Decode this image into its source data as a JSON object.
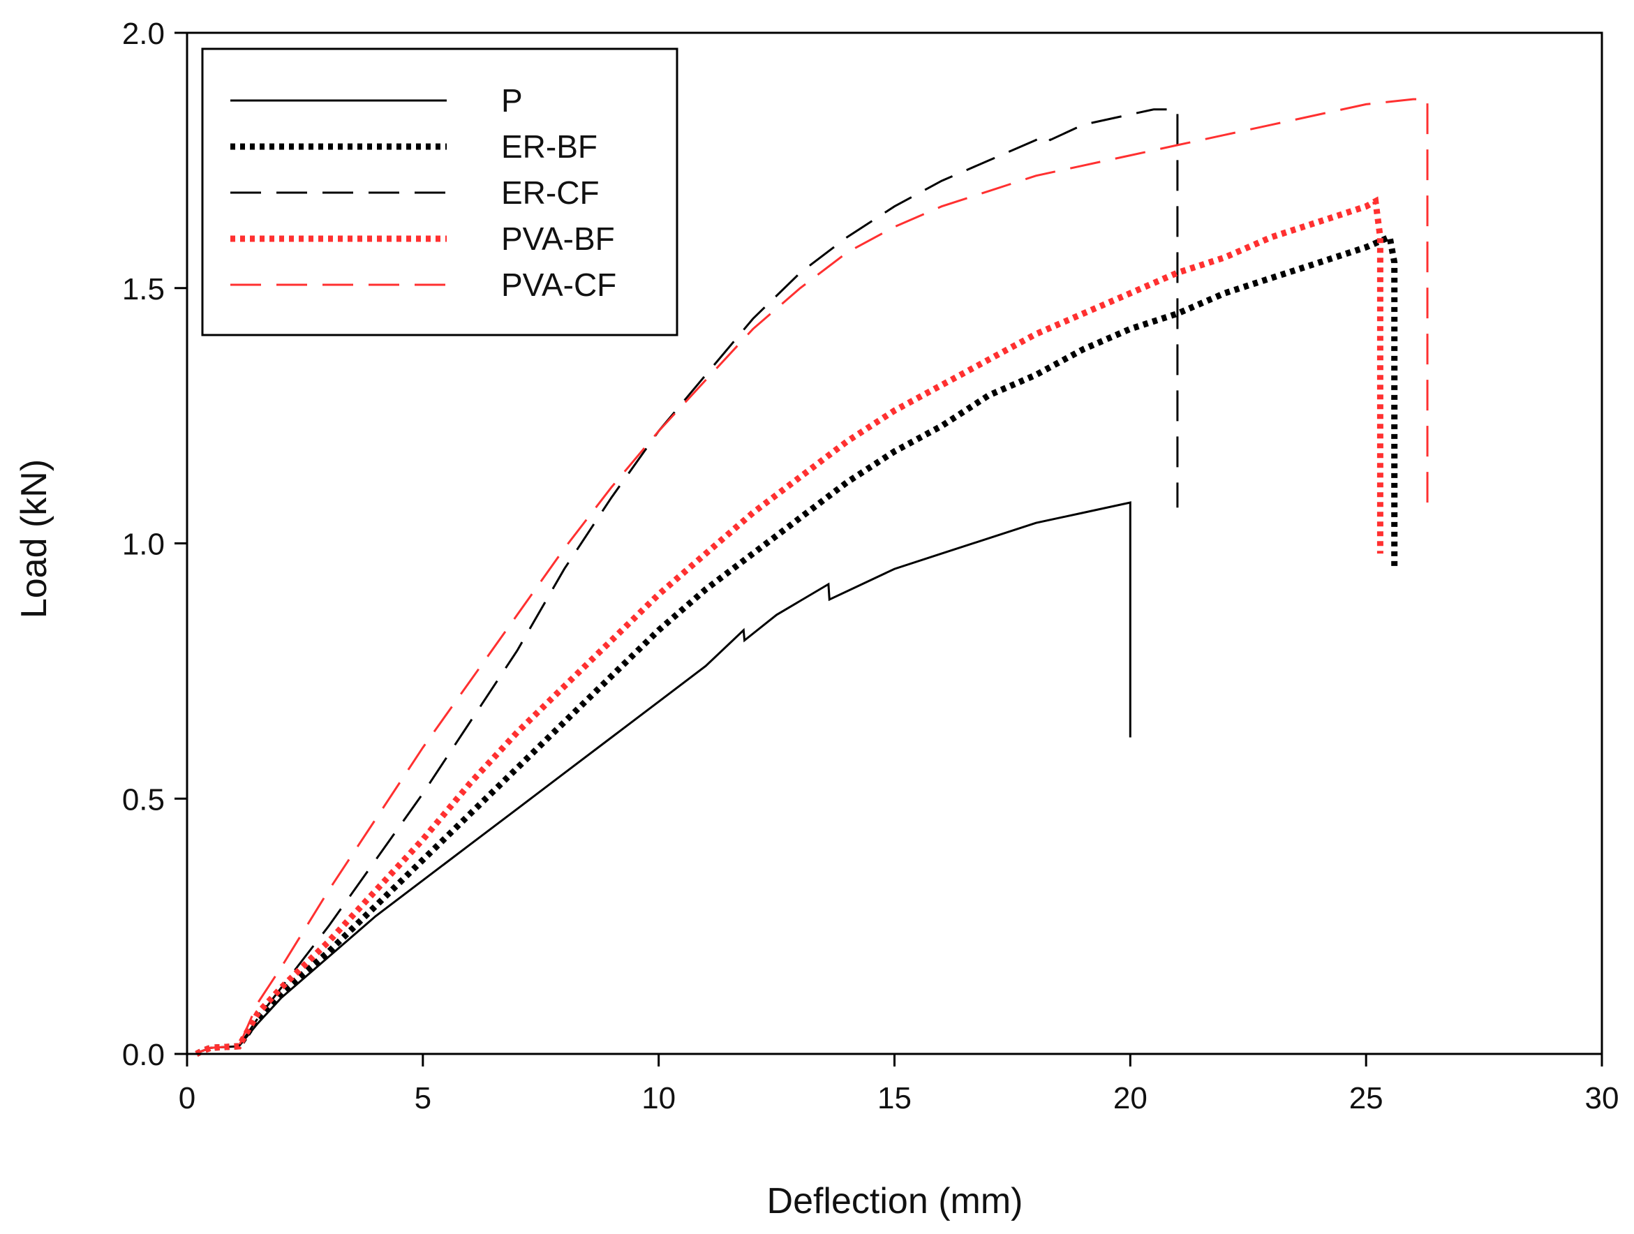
{
  "chart_data": {
    "type": "line",
    "title": "",
    "xlabel": "Deflection (mm)",
    "ylabel": "Load (kN)",
    "xlim": [
      0,
      30
    ],
    "ylim": [
      0,
      2.0
    ],
    "xticks": [
      "0",
      "5",
      "10",
      "15",
      "20",
      "25",
      "30"
    ],
    "yticks": [
      "0.0",
      "0.5",
      "1.0",
      "1.5",
      "2.0"
    ],
    "grid": false,
    "legend_position": "top-left",
    "series": [
      {
        "name": "P",
        "color": "#000000",
        "style": "solid",
        "points": [
          [
            0.2,
            0
          ],
          [
            0.3,
            0.005
          ],
          [
            0.5,
            0.012
          ],
          [
            1.1,
            0.015
          ],
          [
            1.5,
            0.06
          ],
          [
            2,
            0.11
          ],
          [
            3,
            0.19
          ],
          [
            4,
            0.27
          ],
          [
            5,
            0.34
          ],
          [
            6,
            0.41
          ],
          [
            7,
            0.48
          ],
          [
            8,
            0.55
          ],
          [
            9,
            0.62
          ],
          [
            10,
            0.69
          ],
          [
            11,
            0.76
          ],
          [
            11.8,
            0.83
          ],
          [
            11.82,
            0.81
          ],
          [
            12.5,
            0.86
          ],
          [
            13.6,
            0.92
          ],
          [
            13.62,
            0.89
          ],
          [
            15,
            0.95
          ],
          [
            16,
            0.98
          ],
          [
            17,
            1.01
          ],
          [
            18,
            1.04
          ],
          [
            19,
            1.06
          ],
          [
            20,
            1.08
          ],
          [
            20,
            0.62
          ]
        ]
      },
      {
        "name": "ER-BF",
        "color": "#000000",
        "style": "dotted",
        "points": [
          [
            0.2,
            0
          ],
          [
            0.3,
            0.005
          ],
          [
            0.5,
            0.012
          ],
          [
            1.1,
            0.015
          ],
          [
            1.5,
            0.07
          ],
          [
            2,
            0.12
          ],
          [
            3,
            0.2
          ],
          [
            4,
            0.29
          ],
          [
            5,
            0.38
          ],
          [
            6,
            0.47
          ],
          [
            7,
            0.56
          ],
          [
            8,
            0.65
          ],
          [
            9,
            0.74
          ],
          [
            10,
            0.83
          ],
          [
            11,
            0.91
          ],
          [
            12,
            0.98
          ],
          [
            13,
            1.05
          ],
          [
            14,
            1.12
          ],
          [
            15,
            1.18
          ],
          [
            16,
            1.23
          ],
          [
            17,
            1.29
          ],
          [
            18,
            1.33
          ],
          [
            19,
            1.38
          ],
          [
            20,
            1.42
          ],
          [
            21,
            1.45
          ],
          [
            22,
            1.49
          ],
          [
            23,
            1.52
          ],
          [
            24,
            1.55
          ],
          [
            25,
            1.58
          ],
          [
            25.5,
            1.6
          ],
          [
            25.6,
            1.55
          ],
          [
            25.6,
            0.95
          ]
        ]
      },
      {
        "name": "ER-CF",
        "color": "#000000",
        "style": "dashed",
        "points": [
          [
            0.2,
            0
          ],
          [
            0.3,
            0.005
          ],
          [
            0.5,
            0.012
          ],
          [
            1.1,
            0.015
          ],
          [
            1.5,
            0.07
          ],
          [
            2,
            0.13
          ],
          [
            3,
            0.25
          ],
          [
            4,
            0.38
          ],
          [
            5,
            0.51
          ],
          [
            6,
            0.65
          ],
          [
            7,
            0.79
          ],
          [
            8,
            0.95
          ],
          [
            9,
            1.09
          ],
          [
            10,
            1.22
          ],
          [
            11,
            1.33
          ],
          [
            12,
            1.44
          ],
          [
            13,
            1.53
          ],
          [
            14,
            1.6
          ],
          [
            15,
            1.66
          ],
          [
            16,
            1.71
          ],
          [
            17,
            1.75
          ],
          [
            18,
            1.79
          ],
          [
            18.2,
            1.8
          ],
          [
            18.3,
            1.79
          ],
          [
            19,
            1.82
          ],
          [
            20,
            1.84
          ],
          [
            20.5,
            1.85
          ],
          [
            21,
            1.85
          ],
          [
            21,
            1.07
          ]
        ]
      },
      {
        "name": "PVA-BF",
        "color": "#ff3030",
        "style": "dotted",
        "points": [
          [
            0.2,
            0
          ],
          [
            0.3,
            0.005
          ],
          [
            0.5,
            0.012
          ],
          [
            1.1,
            0.015
          ],
          [
            1.5,
            0.08
          ],
          [
            2,
            0.13
          ],
          [
            3,
            0.22
          ],
          [
            4,
            0.32
          ],
          [
            5,
            0.42
          ],
          [
            6,
            0.53
          ],
          [
            7,
            0.63
          ],
          [
            8,
            0.72
          ],
          [
            9,
            0.81
          ],
          [
            10,
            0.9
          ],
          [
            11,
            0.98
          ],
          [
            12,
            1.06
          ],
          [
            13,
            1.13
          ],
          [
            14,
            1.2
          ],
          [
            15,
            1.26
          ],
          [
            16,
            1.31
          ],
          [
            17,
            1.36
          ],
          [
            18,
            1.41
          ],
          [
            19,
            1.45
          ],
          [
            20,
            1.49
          ],
          [
            21,
            1.53
          ],
          [
            22,
            1.56
          ],
          [
            23,
            1.6
          ],
          [
            24,
            1.63
          ],
          [
            25,
            1.66
          ],
          [
            25.2,
            1.67
          ],
          [
            25.3,
            1.6
          ],
          [
            25.3,
            0.98
          ]
        ]
      },
      {
        "name": "PVA-CF",
        "color": "#ff3030",
        "style": "dashed",
        "points": [
          [
            0.2,
            0
          ],
          [
            0.3,
            0.005
          ],
          [
            0.5,
            0.012
          ],
          [
            1.1,
            0.015
          ],
          [
            1.5,
            0.1
          ],
          [
            2,
            0.17
          ],
          [
            3,
            0.32
          ],
          [
            4,
            0.46
          ],
          [
            5,
            0.6
          ],
          [
            6,
            0.73
          ],
          [
            7,
            0.86
          ],
          [
            8,
            0.99
          ],
          [
            9,
            1.11
          ],
          [
            10,
            1.22
          ],
          [
            11,
            1.32
          ],
          [
            12,
            1.42
          ],
          [
            13,
            1.5
          ],
          [
            14,
            1.57
          ],
          [
            15,
            1.62
          ],
          [
            16,
            1.66
          ],
          [
            17,
            1.69
          ],
          [
            18,
            1.72
          ],
          [
            19,
            1.74
          ],
          [
            20,
            1.76
          ],
          [
            21,
            1.78
          ],
          [
            22,
            1.8
          ],
          [
            23,
            1.82
          ],
          [
            24,
            1.84
          ],
          [
            25,
            1.86
          ],
          [
            26,
            1.87
          ],
          [
            26.3,
            1.87
          ],
          [
            26.3,
            1.08
          ]
        ]
      }
    ]
  }
}
